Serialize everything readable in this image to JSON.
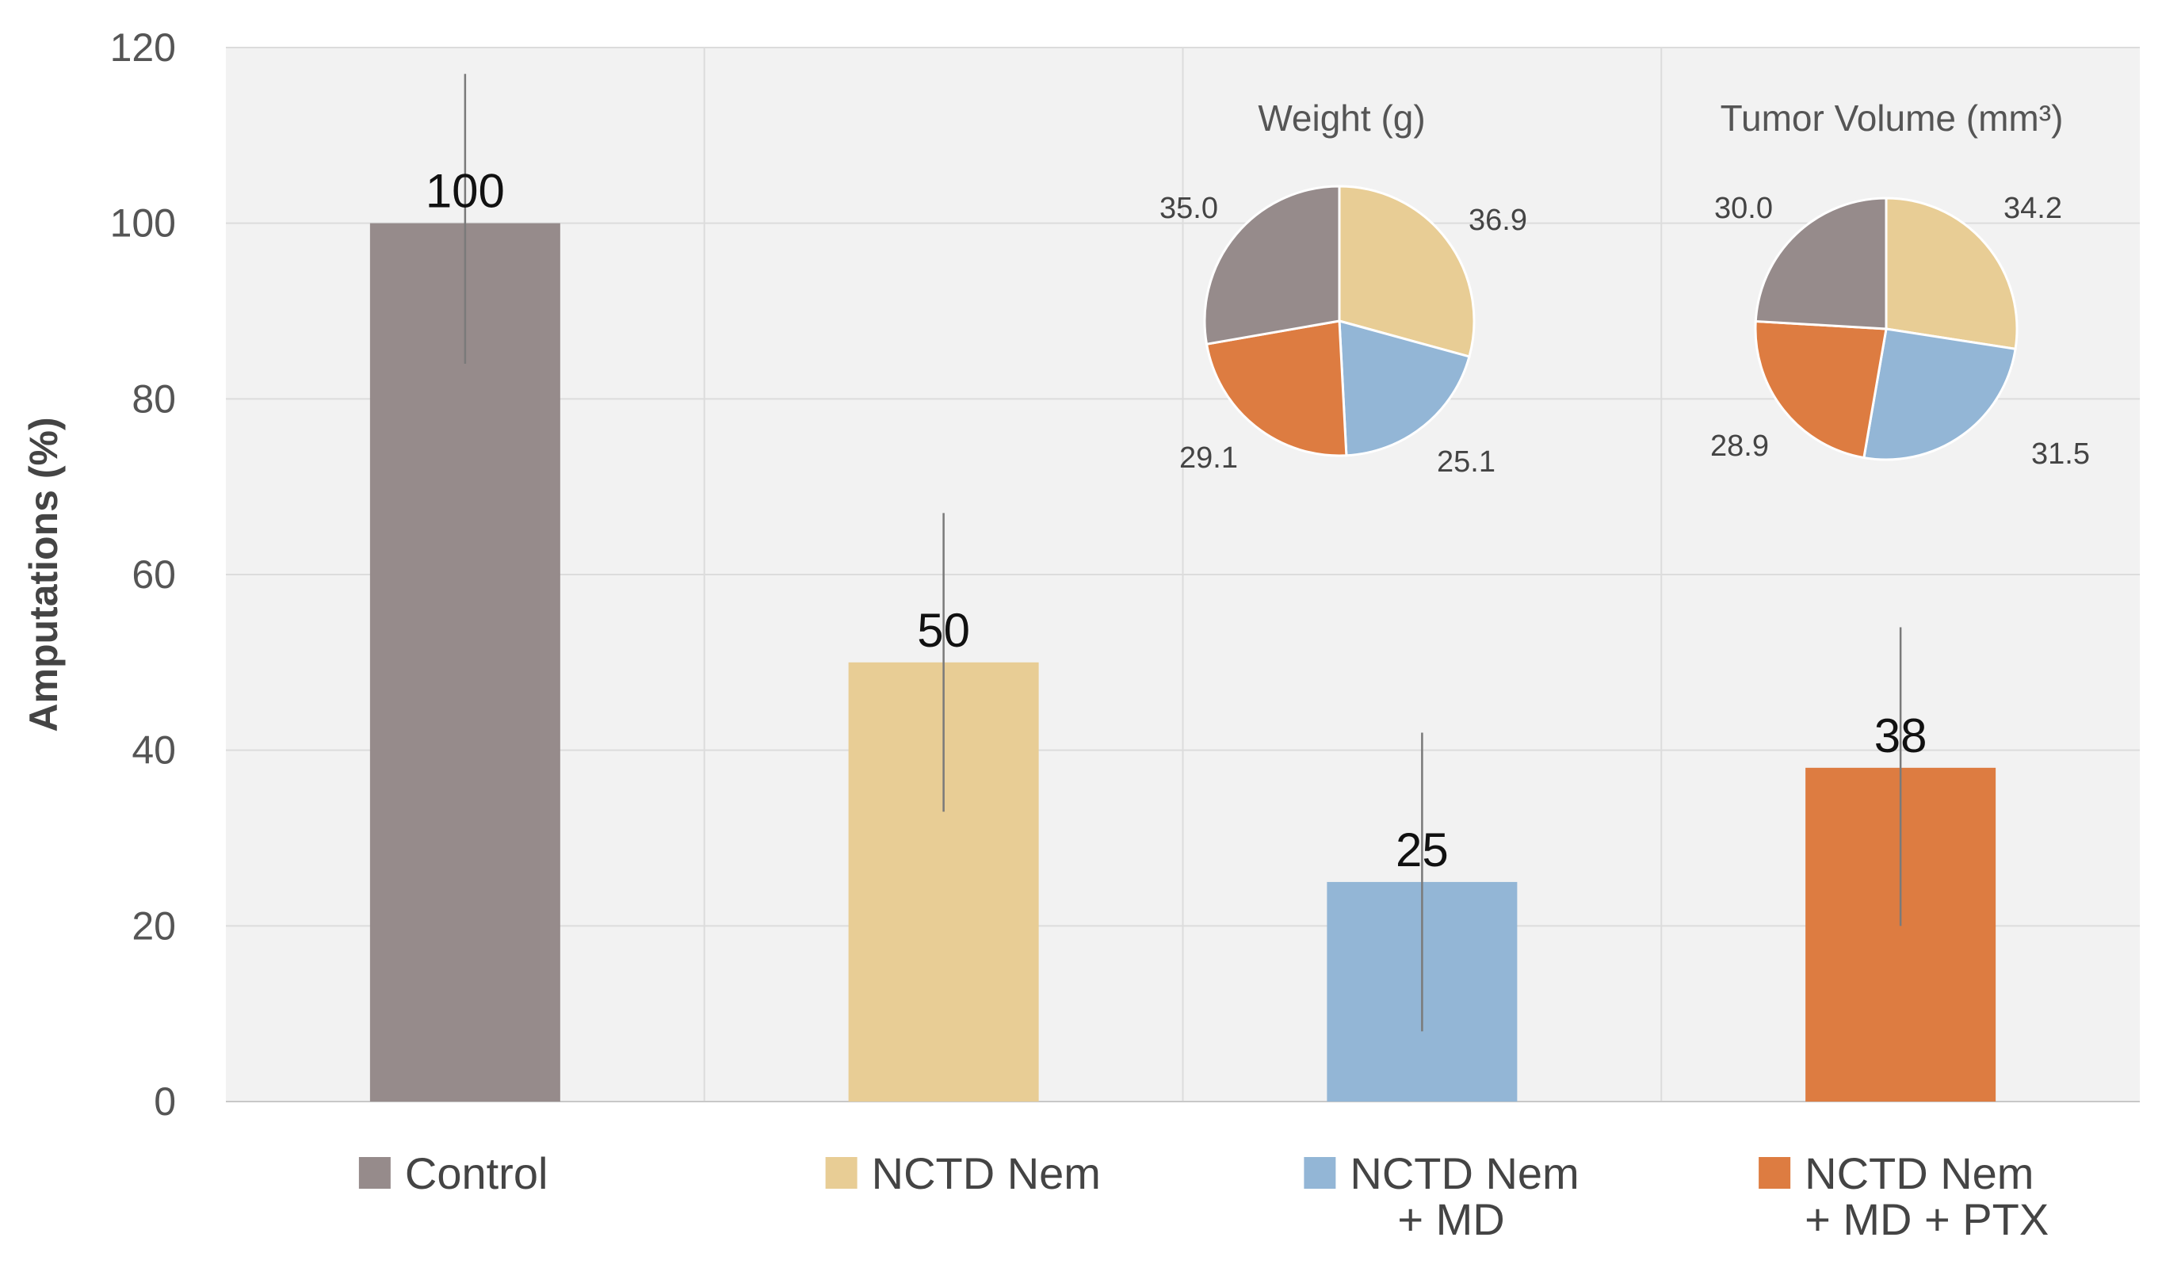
{
  "chart_data": [
    {
      "type": "bar",
      "ylabel": "Amputations (%)",
      "ylim": [
        0,
        120
      ],
      "yticks": [
        0,
        20,
        40,
        60,
        80,
        100,
        120
      ],
      "grid": true,
      "categories": [
        [
          "Control"
        ],
        [
          "NCTD Nem"
        ],
        [
          "NCTD Nem",
          "+ MD"
        ],
        [
          "NCTD Nem",
          "+ MD + PTX"
        ]
      ],
      "values": [
        100,
        50,
        25,
        38
      ],
      "data_labels": [
        "100",
        "50",
        "25",
        "38"
      ],
      "error_bars": [
        [
          84,
          117
        ],
        [
          33,
          67
        ],
        [
          8,
          42
        ],
        [
          20,
          54
        ]
      ],
      "colors": [
        "#968b8b",
        "#e8cd95",
        "#93b6d6",
        "#dd7c41"
      ]
    },
    {
      "type": "pie",
      "title": "Weight (g)",
      "values": [
        36.9,
        25.1,
        29.1,
        35.0
      ],
      "labels": [
        "36.9",
        "25.1",
        "29.1",
        "35.0"
      ],
      "colors": [
        "#e8cd95",
        "#93b6d6",
        "#dd7c41",
        "#968b8b"
      ]
    },
    {
      "type": "pie",
      "title": "Tumor Volume  (mm³)",
      "values": [
        34.2,
        31.5,
        28.9,
        30.0
      ],
      "labels": [
        "34.2",
        "31.5",
        "28.9",
        "30.0"
      ],
      "colors": [
        "#e8cd95",
        "#93b6d6",
        "#dd7c41",
        "#968b8b"
      ]
    }
  ]
}
